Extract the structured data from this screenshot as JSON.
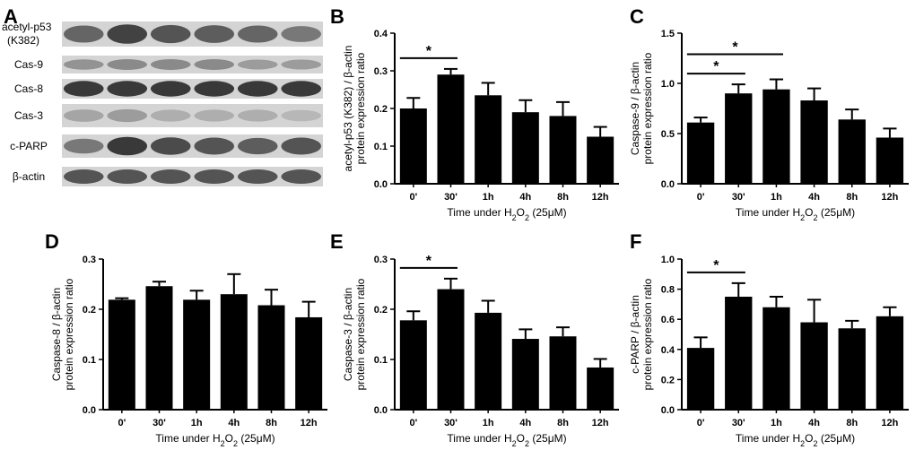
{
  "panel_labels": [
    "A",
    "B",
    "C",
    "D",
    "E",
    "F"
  ],
  "blot": {
    "rows": [
      {
        "label_lines": [
          "acetyl-p53",
          "(K382)"
        ],
        "intensities": [
          0.55,
          0.75,
          0.65,
          0.6,
          0.55,
          0.45
        ]
      },
      {
        "label_lines": [
          "Cas-9"
        ],
        "intensities": [
          0.3,
          0.35,
          0.35,
          0.35,
          0.25,
          0.25
        ]
      },
      {
        "label_lines": [
          "Cas-8"
        ],
        "intensities": [
          0.8,
          0.8,
          0.8,
          0.8,
          0.8,
          0.8
        ]
      },
      {
        "label_lines": [
          "Cas-3"
        ],
        "intensities": [
          0.2,
          0.25,
          0.15,
          0.15,
          0.15,
          0.1
        ]
      },
      {
        "label_lines": [
          "c-PARP"
        ],
        "intensities": [
          0.45,
          0.8,
          0.7,
          0.65,
          0.6,
          0.65
        ]
      },
      {
        "label_lines": [
          "β-actin"
        ],
        "intensities": [
          0.65,
          0.65,
          0.65,
          0.65,
          0.65,
          0.65
        ]
      }
    ]
  },
  "chart_data": [
    {
      "panel": "B",
      "type": "bar",
      "categories": [
        "0'",
        "30'",
        "1h",
        "4h",
        "8h",
        "12h"
      ],
      "values": [
        0.2,
        0.29,
        0.235,
        0.19,
        0.18,
        0.125
      ],
      "errors": [
        0.028,
        0.015,
        0.033,
        0.032,
        0.037,
        0.026
      ],
      "ylim": [
        0,
        0.4
      ],
      "yticks": [
        "0.0",
        "0.1",
        "0.2",
        "0.3",
        "0.4"
      ],
      "ylabel_lines": [
        "acetyl-p53 (K382) / β-actin",
        "protein expression ratio"
      ],
      "xlabel": "Time under H2O2 (25μM)",
      "significance": [
        {
          "from": "0'",
          "to": "30'",
          "label": "*"
        }
      ]
    },
    {
      "panel": "C",
      "type": "bar",
      "categories": [
        "0'",
        "30'",
        "1h",
        "4h",
        "8h",
        "12h"
      ],
      "values": [
        0.61,
        0.9,
        0.94,
        0.83,
        0.64,
        0.46
      ],
      "errors": [
        0.05,
        0.09,
        0.1,
        0.12,
        0.1,
        0.09
      ],
      "ylim": [
        0,
        1.5
      ],
      "yticks": [
        "0.0",
        "0.5",
        "1.0",
        "1.5"
      ],
      "ylabel_lines": [
        "Caspase-9 / β-actin",
        "protein expression ratio"
      ],
      "xlabel": "Time under H2O2 (25μM)",
      "significance": [
        {
          "from": "0'",
          "to": "30'",
          "label": "*"
        },
        {
          "from": "0'",
          "to": "1h",
          "label": "*"
        }
      ]
    },
    {
      "panel": "D",
      "type": "bar",
      "categories": [
        "0'",
        "30'",
        "1h",
        "4h",
        "8h",
        "12h"
      ],
      "values": [
        0.219,
        0.246,
        0.219,
        0.23,
        0.208,
        0.184
      ],
      "errors": [
        0.003,
        0.009,
        0.018,
        0.04,
        0.031,
        0.031
      ],
      "ylim": [
        0,
        0.3
      ],
      "yticks": [
        "0.0",
        "0.1",
        "0.2",
        "0.3"
      ],
      "ylabel_lines": [
        "Caspase-8 / β-actin",
        "protein expression ratio"
      ],
      "xlabel": "Time under H2O2 (25μM)",
      "significance": []
    },
    {
      "panel": "E",
      "type": "bar",
      "categories": [
        "0'",
        "30'",
        "1h",
        "4h",
        "8h",
        "12h"
      ],
      "values": [
        0.178,
        0.24,
        0.193,
        0.141,
        0.146,
        0.084
      ],
      "errors": [
        0.018,
        0.021,
        0.024,
        0.019,
        0.018,
        0.017
      ],
      "ylim": [
        0,
        0.3
      ],
      "yticks": [
        "0.0",
        "0.1",
        "0.2",
        "0.3"
      ],
      "ylabel_lines": [
        "Caspase-3 / β-actin",
        "protein expression ratio"
      ],
      "xlabel": "Time under H2O2 (25μM)",
      "significance": [
        {
          "from": "0'",
          "to": "30'",
          "label": "*"
        }
      ]
    },
    {
      "panel": "F",
      "type": "bar",
      "categories": [
        "0'",
        "30'",
        "1h",
        "4h",
        "8h",
        "12h"
      ],
      "values": [
        0.41,
        0.75,
        0.68,
        0.58,
        0.54,
        0.62
      ],
      "errors": [
        0.07,
        0.09,
        0.07,
        0.15,
        0.05,
        0.06
      ],
      "ylim": [
        0,
        1.0
      ],
      "yticks": [
        "0.0",
        "0.2",
        "0.4",
        "0.6",
        "0.8",
        "1.0"
      ],
      "ylabel_lines": [
        "c-PARP / β-actin",
        "protein expression ratio"
      ],
      "xlabel": "Time under H2O2 (25μM)",
      "significance": [
        {
          "from": "0'",
          "to": "30'",
          "label": "*"
        }
      ]
    }
  ]
}
